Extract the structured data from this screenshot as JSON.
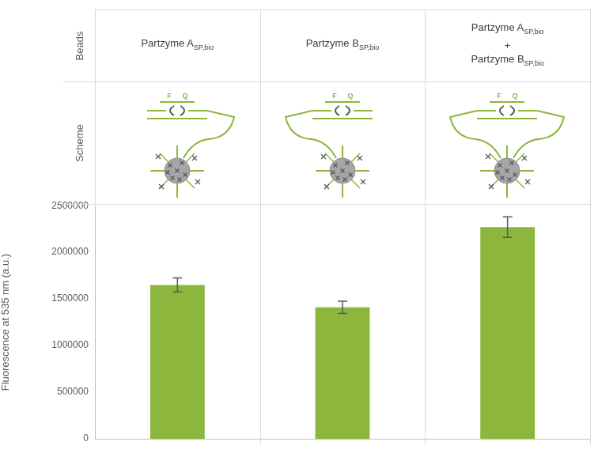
{
  "chart_data": {
    "type": "bar",
    "row_labels": [
      "Beads",
      "Scheme"
    ],
    "scheme_labels": [
      "F",
      "Q"
    ],
    "categories": [
      [
        {
          "text": "Partzyme A",
          "sub": "SP,bio"
        }
      ],
      [
        {
          "text": "Partzyme B",
          "sub": "SP,bio"
        }
      ],
      [
        {
          "text": "Partzyme A",
          "sub": "SP,bio"
        },
        "+",
        {
          "text": "Partzyme B",
          "sub": "SP,bio"
        }
      ]
    ],
    "values": [
      1650000,
      1410000,
      2270000
    ],
    "errors": [
      75000,
      65000,
      110000
    ],
    "color": "#8cb63c",
    "y_label": "Fluorescence at 535 nm (a.u.)",
    "ylim": [
      0,
      2500000
    ],
    "yticks": [
      0,
      500000,
      1000000,
      1500000,
      2000000,
      2500000
    ],
    "grid": false,
    "tick_labels": "y"
  }
}
